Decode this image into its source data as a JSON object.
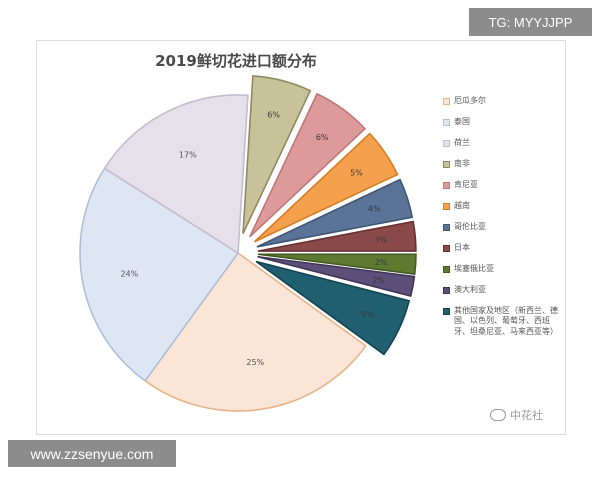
{
  "watermark_top": "TG: MYYJJPP",
  "watermark_bottom": "www.zzsenyue.com",
  "brand": "中花社",
  "chart_data": {
    "type": "pie",
    "title": "2019鲜切花进口额分布",
    "legend_position": "right",
    "slices": [
      {
        "name": "厄瓜多尔",
        "value": 25,
        "label": "25%",
        "color": "#fbe5d6",
        "stroke": "#e8b48a",
        "exploded": false
      },
      {
        "name": "泰国",
        "value": 24,
        "label": "24%",
        "color": "#dde6f2",
        "stroke": "#aebfda",
        "exploded": false
      },
      {
        "name": "荷兰",
        "value": 17,
        "label": "17%",
        "color": "#e6e0ea",
        "stroke": "#c5bccf",
        "exploded": false
      },
      {
        "name": "南非",
        "value": 6,
        "label": "6%",
        "color": "#c8c29a",
        "stroke": "#8f8a5f",
        "exploded": true
      },
      {
        "name": "肯尼亚",
        "value": 6,
        "label": "6%",
        "color": "#dd9a9a",
        "stroke": "#bf7777",
        "exploded": true
      },
      {
        "name": "越南",
        "value": 5,
        "label": "5%",
        "color": "#f5a04d",
        "stroke": "#d67d25",
        "exploded": true
      },
      {
        "name": "哥伦比亚",
        "value": 4,
        "label": "4%",
        "color": "#5b7397",
        "stroke": "#3f5677",
        "exploded": true
      },
      {
        "name": "日本",
        "value": 3,
        "label": "3%",
        "color": "#8b4a4a",
        "stroke": "#6a3030",
        "exploded": true
      },
      {
        "name": "埃塞俄比亚",
        "value": 2,
        "label": "2%",
        "color": "#5e7a30",
        "stroke": "#44591f",
        "exploded": true
      },
      {
        "name": "澳大利亚",
        "value": 2,
        "label": "2%",
        "color": "#5c4f78",
        "stroke": "#413658",
        "exploded": true
      },
      {
        "name": "其他国家及地区（新西兰、德国、以色列、葡萄牙、西班牙、坦桑尼亚、马来西亚等）",
        "value": 6,
        "label": "6%",
        "color": "#1f5f70",
        "stroke": "#124452",
        "exploded": true
      }
    ]
  }
}
